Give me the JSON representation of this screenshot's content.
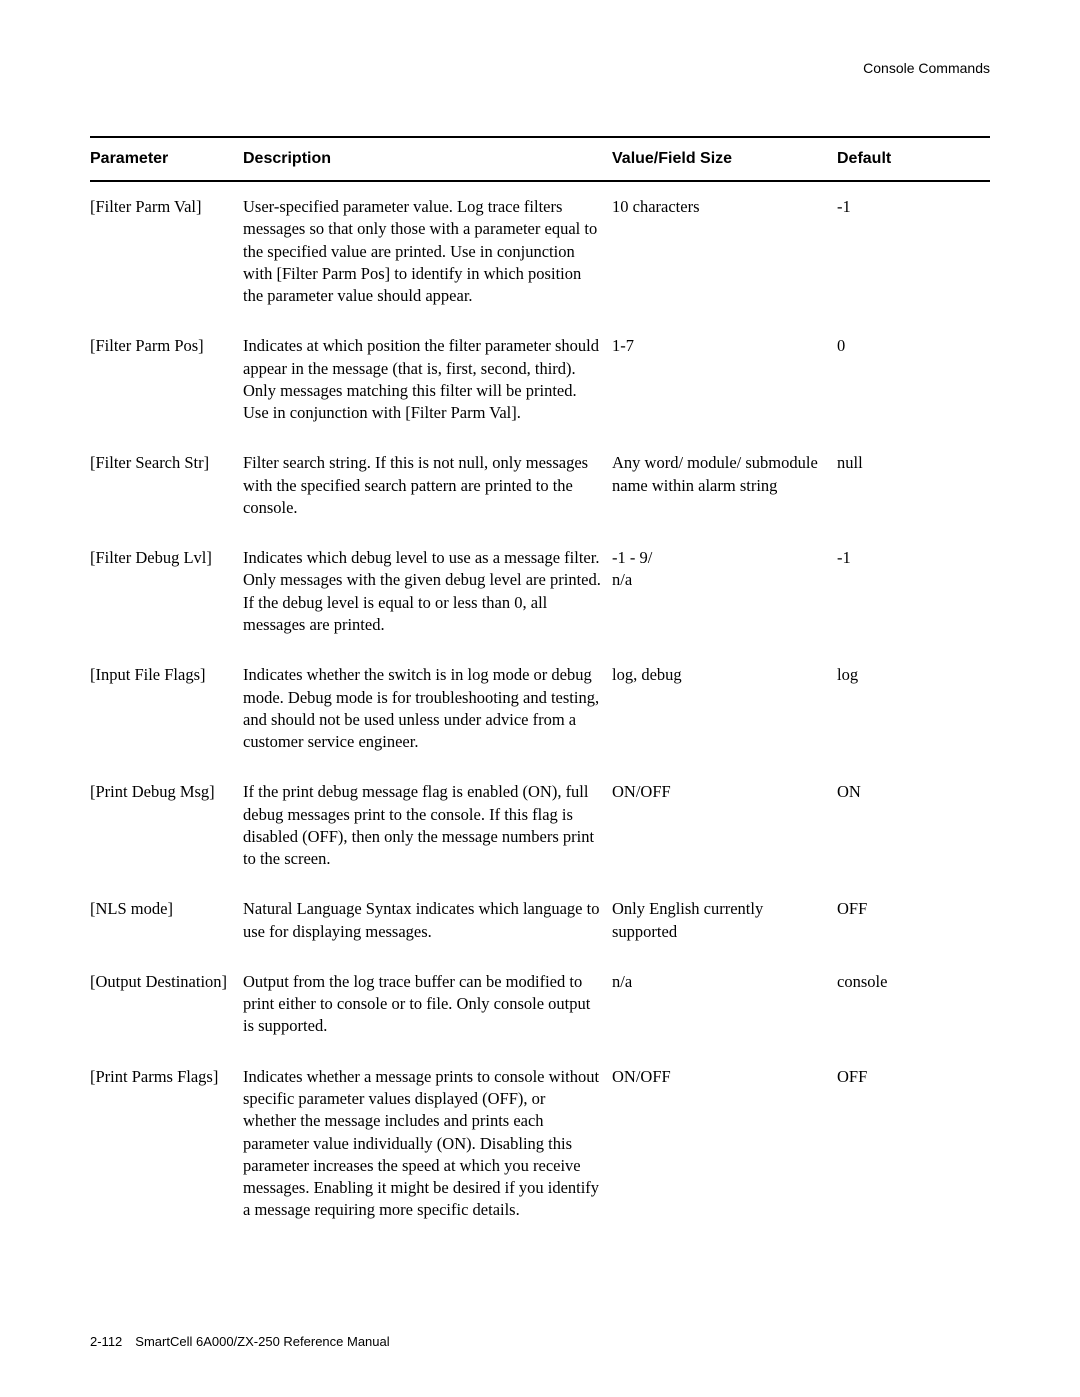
{
  "header": {
    "section": "Console Commands"
  },
  "table": {
    "columns": {
      "parameter": "Parameter",
      "description": "Description",
      "value": "Value/Field Size",
      "default": "Default"
    },
    "rows": [
      {
        "parameter": "[Filter Parm Val]",
        "description": "User-specified parameter value. Log trace filters messages so that only those with a parameter equal to the specified value are printed. Use in conjunction with [Filter Parm Pos] to identify in which position the parameter value should appear.",
        "value": "10 characters",
        "default": "-1"
      },
      {
        "parameter": "[Filter Parm Pos]",
        "description": "Indicates at which position the filter parameter should appear in the message (that is, first, second, third). Only messages matching this filter will be printed. Use in conjunction with [Filter Parm Val].",
        "value": "1-7",
        "default": "0"
      },
      {
        "parameter": "[Filter Search Str]",
        "description": "Filter search string. If this is not null, only messages with the specified search pattern are printed to the console.",
        "value": "Any word/ module/ submodule name within alarm string",
        "default": "null"
      },
      {
        "parameter": "[Filter Debug Lvl]",
        "description": "Indicates which debug level to use as a message filter. Only messages with the given debug level are printed. If the debug level is equal to or less than 0, all messages are printed.",
        "value": "-1 - 9/\nn/a",
        "default": "-1"
      },
      {
        "parameter": "[Input File Flags]",
        "description": "Indicates whether the switch is in log mode or debug mode. Debug mode is for troubleshooting and testing, and should not be used unless under advice from a customer service engineer.",
        "value": "log, debug",
        "default": "log"
      },
      {
        "parameter": "[Print Debug Msg]",
        "description": "If the print debug message flag is enabled (ON), full debug messages print to the console. If this flag is disabled (OFF), then only the message numbers print to the screen.",
        "value": "ON/OFF",
        "default": "ON"
      },
      {
        "parameter": "[NLS mode]",
        "description": "Natural Language Syntax indicates which language to use for displaying messages.",
        "value": "Only English currently supported",
        "default": "OFF"
      },
      {
        "parameter": "[Output Destination]",
        "description": "Output from the log trace buffer can be modified to print either to console or to file. Only console output is supported.",
        "value": "n/a",
        "default": "console"
      },
      {
        "parameter": "[Print Parms Flags]",
        "description": "Indicates whether a message prints to console without specific parameter values displayed (OFF), or whether the message includes and prints each parameter value individually (ON). Disabling this parameter increases the speed at which you receive messages. Enabling it might be desired if you identify a message requiring more specific details.",
        "value": "ON/OFF",
        "default": "OFF"
      }
    ]
  },
  "footer": {
    "text": "2-112 SmartCell 6A000/ZX-250 Reference Manual"
  }
}
